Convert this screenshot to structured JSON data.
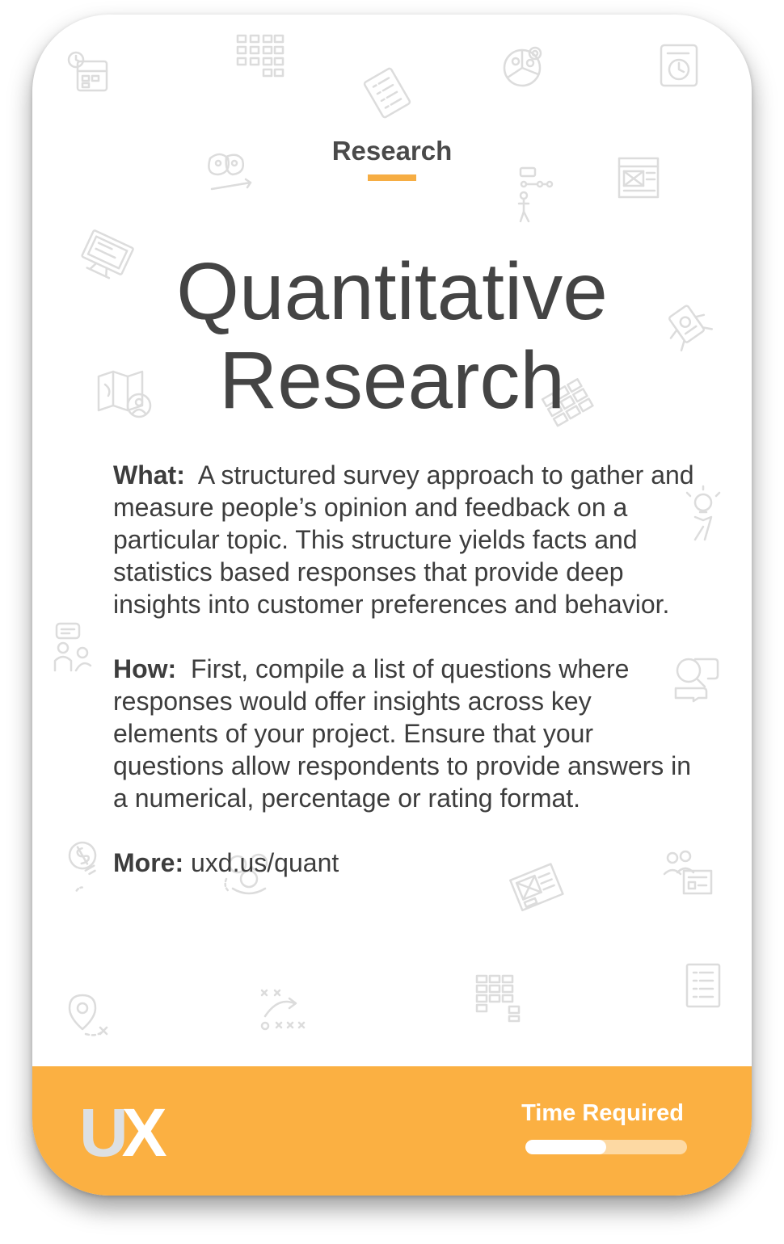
{
  "card": {
    "category": "Research",
    "title_line1": "Quantitative",
    "title_line2": "Research",
    "what_label": "What:",
    "what_text": "A structured survey approach to gather and measure people’s opinion and feedback on a particular topic. This structure yields facts and statistics based responses that provide deep insights into customer preferences and behavior.",
    "how_label": "How:",
    "how_text": "First, compile a list of questions where responses would offer insights across key elements of your project. Ensure that your questions allow respondents to provide answers in a numerical, percentage or rating format.",
    "more_label": "More:",
    "more_text": "uxd.us/quant"
  },
  "footer": {
    "logo_u": "U",
    "logo_x": "X",
    "time_label": "Time Required",
    "time_fraction": 0.5
  },
  "colors": {
    "accent": "#f6ad43",
    "footer": "#fbb042",
    "text": "#3d3d3d"
  },
  "background_icons": [
    "calendar-clock-icon",
    "grid-icon",
    "checklist-icon",
    "people-chart-icon",
    "document-clock-icon",
    "sticky-notes-icon",
    "flowchart-person-icon",
    "wireframe-icon",
    "computer-icon",
    "map-location-icon",
    "tiles-icon",
    "hands-clipboard-icon",
    "lightbulb-person-icon",
    "chat-person-icon",
    "magnifier-chat-icon",
    "money-bulb-icon",
    "team-icon",
    "wireframe-tilted-icon",
    "people-board-icon",
    "location-pin-icon",
    "strategy-play-icon",
    "block-grid-icon",
    "list-document-icon"
  ]
}
